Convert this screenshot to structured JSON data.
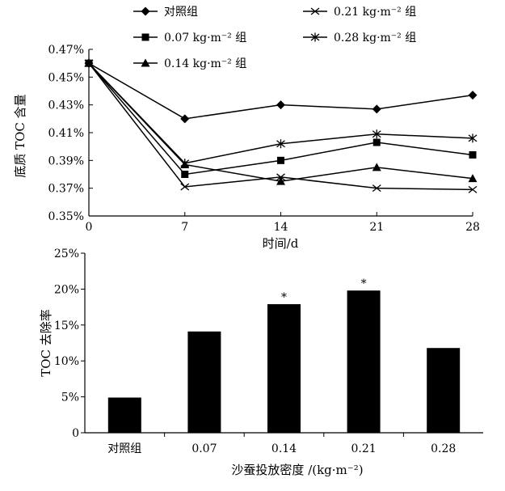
{
  "chart_data": [
    {
      "type": "line",
      "title": "",
      "xlabel": "时间/d",
      "ylabel": "底质 TOC 含量",
      "x": [
        0,
        7,
        14,
        21,
        28
      ],
      "x_tick_labels": [
        "0",
        "7",
        "14",
        "21",
        "28"
      ],
      "ylim": [
        0.35,
        0.47
      ],
      "y_ticks": [
        0.35,
        0.37,
        0.39,
        0.41,
        0.43,
        0.45,
        0.47
      ],
      "y_tick_labels": [
        "0.35%",
        "0.37%",
        "0.39%",
        "0.41%",
        "0.43%",
        "0.45%",
        "0.47%"
      ],
      "y_unit": "%",
      "legend_position": "top",
      "series": [
        {
          "name": "对照组",
          "marker": "diamond",
          "values": [
            0.46,
            0.42,
            0.43,
            0.427,
            0.437
          ]
        },
        {
          "name": "0.07 kg·m⁻² 组",
          "marker": "square",
          "values": [
            0.46,
            0.38,
            0.39,
            0.403,
            0.394
          ]
        },
        {
          "name": "0.14 kg·m⁻² 组",
          "marker": "triangle",
          "values": [
            0.46,
            0.387,
            0.375,
            0.385,
            0.377
          ]
        },
        {
          "name": "0.21 kg·m⁻² 组",
          "marker": "x",
          "values": [
            0.46,
            0.371,
            0.378,
            0.37,
            0.369
          ]
        },
        {
          "name": "0.28 kg·m⁻² 组",
          "marker": "star",
          "values": [
            0.46,
            0.388,
            0.402,
            0.409,
            0.406
          ]
        }
      ]
    },
    {
      "type": "bar",
      "title": "",
      "xlabel": "沙蚕投放密度 /(kg·m⁻²)",
      "ylabel": "TOC 去除率",
      "categories": [
        "对照组",
        "0.07",
        "0.14",
        "0.21",
        "0.28"
      ],
      "values": [
        4.9,
        14.1,
        17.9,
        19.8,
        11.8
      ],
      "ylim": [
        0,
        25
      ],
      "y_ticks": [
        0,
        5,
        10,
        15,
        20,
        25
      ],
      "y_tick_labels": [
        "0",
        "5%",
        "10%",
        "15%",
        "20%",
        "25%"
      ],
      "significance": [
        "",
        "",
        "*",
        "*",
        ""
      ]
    }
  ]
}
